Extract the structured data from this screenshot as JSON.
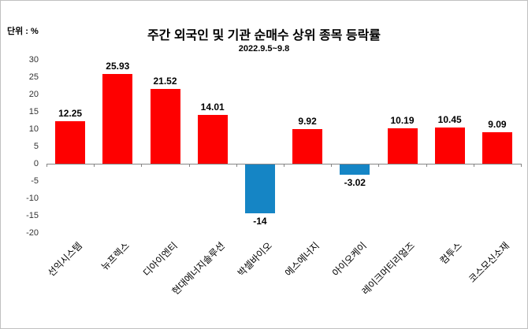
{
  "unit_label": "단위 : %",
  "title": "주간 외국인 및 기관 순매수 상위 종목 등락률",
  "subtitle": "2022.9.5~9.8",
  "chart_data": {
    "type": "bar",
    "title": "주간 외국인 및 기관 순매수 상위 종목 등락률",
    "subtitle": "2022.9.5~9.8",
    "unit": "%",
    "categories": [
      "선익시스템",
      "뉴프렉스",
      "디아이엔티",
      "현대에너지솔루션",
      "박셀바이오",
      "에스에너지",
      "아이오케이",
      "레이크머티리얼즈",
      "컴투스",
      "코스모신소재"
    ],
    "values": [
      12.25,
      25.93,
      21.52,
      14.01,
      -14,
      9.92,
      -3.02,
      10.19,
      10.45,
      9.09
    ],
    "ylim": [
      -20,
      30
    ],
    "ytick_step": 5,
    "grid": false,
    "legend": "none",
    "positive_color": "#fe0000",
    "negative_color": "#1585c5"
  }
}
